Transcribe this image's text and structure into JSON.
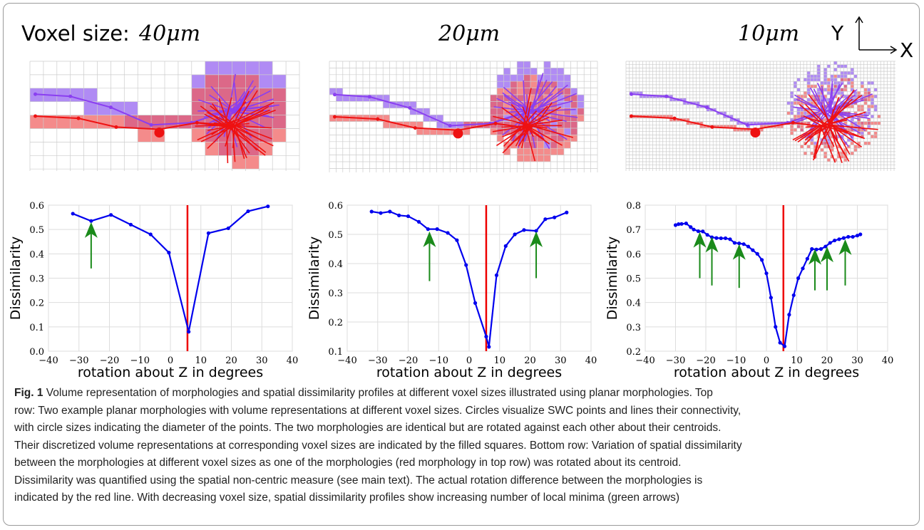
{
  "header": {
    "prefix": "Voxel size:",
    "panels": [
      "40μm",
      "20μm",
      "10μm"
    ],
    "axis_y": "Y",
    "axis_x": "X"
  },
  "chart_data": [
    {
      "type": "line",
      "xlabel": "rotation about Z in degrees",
      "ylabel": "Dissimilarity",
      "color": "#0000ee",
      "vline": 5.6,
      "vline_color": "#ee0000",
      "grid": true,
      "x": [
        -32,
        -26,
        -19.5,
        -13,
        -6.5,
        -0.5,
        6,
        12.5,
        19,
        25.5,
        32
      ],
      "values": [
        0.565,
        0.535,
        0.56,
        0.52,
        0.48,
        0.405,
        0.08,
        0.485,
        0.505,
        0.575,
        0.595
      ],
      "xlim": [
        -40,
        40
      ],
      "xticks": [
        {
          "value": -40,
          "label": "−40"
        },
        {
          "value": -30,
          "label": "−30"
        },
        {
          "value": -20,
          "label": "−20"
        },
        {
          "value": -10,
          "label": "−10"
        },
        0,
        10,
        20,
        30,
        40
      ],
      "ylim": [
        0,
        0.6
      ],
      "yticks": [
        {
          "value": 0,
          "label": "0.0"
        },
        0.1,
        0.2,
        0.3,
        0.4,
        0.5,
        0.6
      ],
      "arrows": [
        {
          "x": -26,
          "from": 0.34,
          "to": 0.53
        }
      ],
      "arrow_color": "#1a8a1a"
    },
    {
      "type": "line",
      "xlabel": "rotation about Z in degrees",
      "ylabel": "Dissimilarity",
      "color": "#0000ee",
      "vline": 5.6,
      "vline_color": "#ee0000",
      "grid": true,
      "x": [
        -32,
        -29,
        -26,
        -23,
        -20,
        -16.5,
        -13.5,
        -10.5,
        -7,
        -4,
        -1,
        2,
        5.6,
        6.5,
        9,
        12,
        15,
        18,
        22,
        25,
        28,
        32
      ],
      "values": [
        0.578,
        0.573,
        0.578,
        0.565,
        0.562,
        0.543,
        0.518,
        0.518,
        0.505,
        0.48,
        0.395,
        0.265,
        0.15,
        0.115,
        0.36,
        0.46,
        0.5,
        0.515,
        0.512,
        0.552,
        0.558,
        0.575
      ],
      "xlim": [
        -40,
        40
      ],
      "xticks": [
        {
          "value": -40,
          "label": "−40"
        },
        {
          "value": -30,
          "label": "−30"
        },
        {
          "value": -20,
          "label": "−20"
        },
        {
          "value": -10,
          "label": "−10"
        },
        0,
        10,
        20,
        30,
        40
      ],
      "ylim": [
        0.1,
        0.6
      ],
      "yticks": [
        0.1,
        0.2,
        0.3,
        0.4,
        0.5,
        0.6
      ],
      "arrows": [
        {
          "x": -13,
          "from": 0.34,
          "to": 0.51
        },
        {
          "x": 22,
          "from": 0.35,
          "to": 0.51
        }
      ],
      "arrow_color": "#1a8a1a"
    },
    {
      "type": "line",
      "xlabel": "rotation about Z in degrees",
      "ylabel": "Dissimilarity",
      "color": "#0000ee",
      "vline": 5.6,
      "vline_color": "#ee0000",
      "grid": true,
      "x": [
        -30,
        -29,
        -28,
        -26.5,
        -25,
        -24,
        -22.5,
        -21,
        -19.5,
        -18,
        -16.5,
        -15,
        -13.5,
        -12,
        -10.5,
        -9,
        -7.5,
        -6,
        -4.5,
        -3,
        -1.5,
        0,
        1.5,
        3,
        4.5,
        6,
        7.5,
        9,
        10.5,
        12,
        13.5,
        15,
        16.5,
        18,
        19.5,
        21,
        22.5,
        24,
        25.5,
        27,
        28.5,
        30,
        31
      ],
      "values": [
        0.718,
        0.722,
        0.723,
        0.725,
        0.71,
        0.7,
        0.693,
        0.692,
        0.678,
        0.668,
        0.665,
        0.664,
        0.664,
        0.66,
        0.645,
        0.643,
        0.64,
        0.63,
        0.615,
        0.6,
        0.575,
        0.52,
        0.42,
        0.3,
        0.235,
        0.22,
        0.35,
        0.43,
        0.5,
        0.54,
        0.58,
        0.62,
        0.618,
        0.62,
        0.63,
        0.645,
        0.655,
        0.66,
        0.665,
        0.67,
        0.67,
        0.675,
        0.68
      ],
      "xlim": [
        -40,
        40
      ],
      "xticks": [
        {
          "value": -40,
          "label": "−40"
        },
        {
          "value": -30,
          "label": "−30"
        },
        {
          "value": -20,
          "label": "−20"
        },
        {
          "value": -10,
          "label": "−10"
        },
        0,
        10,
        20,
        30,
        40
      ],
      "ylim": [
        0.2,
        0.8
      ],
      "yticks": [
        0.2,
        0.3,
        0.4,
        0.5,
        0.6,
        0.7,
        0.8
      ],
      "arrows": [
        {
          "x": -22,
          "from": 0.5,
          "to": 0.69
        },
        {
          "x": -18,
          "from": 0.47,
          "to": 0.67
        },
        {
          "x": -9,
          "from": 0.46,
          "to": 0.64
        },
        {
          "x": 16,
          "from": 0.45,
          "to": 0.62
        },
        {
          "x": 20,
          "from": 0.45,
          "to": 0.63
        },
        {
          "x": 26,
          "from": 0.47,
          "to": 0.66
        }
      ],
      "arrow_color": "#1a8a1a"
    }
  ],
  "caption": {
    "label": "Fig. 1",
    "lines": [
      "Volume representation of morphologies and spatial dissimilarity profiles at different voxel sizes illustrated using planar morphologies. Top",
      "row: Two example planar morphologies with volume representations at different voxel sizes. Circles visualize SWC points and lines their connectivity,",
      "with circle sizes indicating the diameter of the points. The two morphologies are identical but are rotated against each other about their centroids.",
      "Their discretized volume representations at corresponding voxel sizes are indicated by the filled squares. Bottom row: Variation of spatial dissimilarity",
      "between the morphologies at different voxel sizes as one of the morphologies (red morphology in top row) was rotated about its centroid.",
      "Dissimilarity was quantified using the spatial non-centric measure (see main text). The actual rotation difference between the morphologies is",
      "indicated by the red line. With decreasing voxel size, spatial dissimilarity profiles show increasing number of local minima (green arrows)"
    ]
  }
}
